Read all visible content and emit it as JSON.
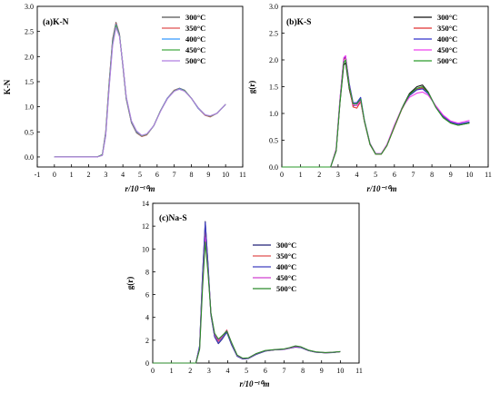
{
  "chart_data": [
    {
      "id": "panel-a",
      "type": "line",
      "title": "(a)K-N",
      "xlabel": "r/10⁻¹⁰m",
      "ylabel": "K-N",
      "xlim": [
        -1,
        11
      ],
      "ylim": [
        -0.2,
        3.0
      ],
      "xticks": [
        -1,
        0,
        1,
        2,
        3,
        4,
        5,
        6,
        7,
        8,
        9,
        10,
        11
      ],
      "yticks": [
        0.0,
        0.5,
        1.0,
        1.5,
        2.0,
        2.5,
        3.0
      ],
      "ytick_labels": [
        "0.0",
        "0.5",
        "1.0",
        "1.5",
        "2.0",
        "2.5",
        "3.0"
      ],
      "legend_position": "top-right",
      "x": [
        0,
        2.5,
        2.8,
        3.0,
        3.2,
        3.4,
        3.6,
        3.8,
        4.0,
        4.2,
        4.5,
        4.8,
        5.1,
        5.4,
        5.8,
        6.2,
        6.6,
        7.0,
        7.3,
        7.6,
        8.0,
        8.4,
        8.8,
        9.1,
        9.5,
        10.0
      ],
      "series": [
        {
          "name": "300°C",
          "color": "#555555",
          "values": [
            0,
            0,
            0.05,
            0.5,
            1.5,
            2.35,
            2.68,
            2.45,
            1.8,
            1.15,
            0.68,
            0.48,
            0.41,
            0.44,
            0.62,
            0.92,
            1.17,
            1.33,
            1.37,
            1.33,
            1.17,
            0.97,
            0.83,
            0.8,
            0.87,
            1.05
          ]
        },
        {
          "name": "350°C",
          "color": "#e05050",
          "values": [
            0,
            0,
            0.04,
            0.48,
            1.48,
            2.33,
            2.66,
            2.44,
            1.81,
            1.16,
            0.69,
            0.49,
            0.41,
            0.44,
            0.62,
            0.92,
            1.17,
            1.33,
            1.36,
            1.32,
            1.17,
            0.97,
            0.83,
            0.8,
            0.87,
            1.05
          ]
        },
        {
          "name": "400°C",
          "color": "#3399ff",
          "values": [
            0,
            0,
            0.04,
            0.46,
            1.45,
            2.3,
            2.64,
            2.43,
            1.82,
            1.17,
            0.7,
            0.5,
            0.42,
            0.45,
            0.62,
            0.92,
            1.17,
            1.32,
            1.36,
            1.32,
            1.17,
            0.97,
            0.84,
            0.81,
            0.87,
            1.05
          ]
        },
        {
          "name": "450°C",
          "color": "#44aa44",
          "values": [
            0,
            0,
            0.04,
            0.44,
            1.42,
            2.27,
            2.62,
            2.42,
            1.83,
            1.18,
            0.71,
            0.51,
            0.42,
            0.45,
            0.62,
            0.92,
            1.16,
            1.32,
            1.35,
            1.32,
            1.17,
            0.98,
            0.84,
            0.81,
            0.87,
            1.05
          ]
        },
        {
          "name": "500°C",
          "color": "#b07ee0",
          "values": [
            0,
            0,
            0.03,
            0.42,
            1.38,
            2.22,
            2.58,
            2.4,
            1.84,
            1.2,
            0.72,
            0.52,
            0.43,
            0.46,
            0.62,
            0.91,
            1.16,
            1.31,
            1.35,
            1.31,
            1.17,
            0.98,
            0.84,
            0.82,
            0.87,
            1.05
          ]
        }
      ]
    },
    {
      "id": "panel-b",
      "type": "line",
      "title": "(b)K-S",
      "xlabel": "r/10⁻¹⁰m",
      "ylabel": "g(r)",
      "xlim": [
        0,
        11
      ],
      "ylim": [
        0,
        3.0
      ],
      "xticks": [
        0,
        1,
        2,
        3,
        4,
        5,
        6,
        7,
        8,
        9,
        10,
        11
      ],
      "yticks": [
        0.0,
        0.5,
        1.0,
        1.5,
        2.0,
        2.5,
        3.0
      ],
      "ytick_labels": [
        "0.0",
        "0.5",
        "1.0",
        "1.5",
        "2.0",
        "2.5",
        "3.0"
      ],
      "legend_position": "top-right",
      "x": [
        0,
        2.6,
        2.9,
        3.1,
        3.3,
        3.4,
        3.6,
        3.8,
        4.0,
        4.2,
        4.4,
        4.7,
        5.0,
        5.3,
        5.6,
        6.0,
        6.4,
        6.8,
        7.2,
        7.5,
        7.8,
        8.2,
        8.6,
        9.0,
        9.4,
        10.0
      ],
      "series": [
        {
          "name": "300°C",
          "color": "#111111",
          "values": [
            0,
            0,
            0.3,
            1.2,
            1.9,
            1.95,
            1.45,
            1.15,
            1.15,
            1.25,
            0.85,
            0.42,
            0.24,
            0.24,
            0.4,
            0.75,
            1.1,
            1.37,
            1.5,
            1.53,
            1.4,
            1.12,
            0.92,
            0.82,
            0.78,
            0.82
          ]
        },
        {
          "name": "350°C",
          "color": "#e03030",
          "values": [
            0,
            0,
            0.32,
            1.25,
            2.0,
            2.05,
            1.5,
            1.12,
            1.1,
            1.22,
            0.86,
            0.43,
            0.24,
            0.24,
            0.4,
            0.74,
            1.08,
            1.33,
            1.45,
            1.48,
            1.38,
            1.13,
            0.94,
            0.83,
            0.79,
            0.83
          ]
        },
        {
          "name": "400°C",
          "color": "#3030cc",
          "values": [
            0,
            0,
            0.33,
            1.27,
            2.02,
            2.07,
            1.55,
            1.2,
            1.2,
            1.3,
            0.88,
            0.44,
            0.25,
            0.25,
            0.41,
            0.76,
            1.09,
            1.33,
            1.44,
            1.46,
            1.37,
            1.14,
            0.95,
            0.84,
            0.8,
            0.84
          ]
        },
        {
          "name": "450°C",
          "color": "#ee40ee",
          "values": [
            0,
            0,
            0.34,
            1.28,
            2.04,
            2.08,
            1.52,
            1.16,
            1.15,
            1.24,
            0.87,
            0.44,
            0.25,
            0.25,
            0.42,
            0.78,
            1.1,
            1.3,
            1.38,
            1.4,
            1.34,
            1.15,
            0.97,
            0.86,
            0.82,
            0.87
          ]
        },
        {
          "name": "500°C",
          "color": "#2a9a2a",
          "values": [
            0,
            0,
            0.31,
            1.22,
            1.95,
            2.0,
            1.5,
            1.18,
            1.18,
            1.27,
            0.87,
            0.43,
            0.24,
            0.24,
            0.4,
            0.75,
            1.09,
            1.35,
            1.47,
            1.5,
            1.39,
            1.12,
            0.92,
            0.82,
            0.78,
            0.82
          ]
        }
      ]
    },
    {
      "id": "panel-c",
      "type": "line",
      "title": "(c)Na-S",
      "xlabel": "r/10⁻¹⁰m",
      "ylabel": "g(r)",
      "xlim": [
        0,
        11
      ],
      "ylim": [
        0,
        14
      ],
      "xticks": [
        0,
        1,
        2,
        3,
        4,
        5,
        6,
        7,
        8,
        9,
        10,
        11
      ],
      "yticks": [
        0,
        2,
        4,
        6,
        8,
        10,
        12,
        14
      ],
      "ytick_labels": [
        "0",
        "2",
        "4",
        "6",
        "8",
        "10",
        "12",
        "14"
      ],
      "legend_position": "top-right",
      "x": [
        0,
        2.3,
        2.5,
        2.65,
        2.8,
        2.95,
        3.1,
        3.3,
        3.5,
        3.7,
        3.95,
        4.2,
        4.5,
        4.8,
        5.1,
        5.5,
        6.0,
        6.5,
        7.0,
        7.3,
        7.6,
        7.9,
        8.3,
        8.7,
        9.2,
        9.6,
        10.0
      ],
      "series": [
        {
          "name": "300°C",
          "color": "#222277",
          "values": [
            0,
            0,
            1.5,
            7.5,
            12.4,
            8.5,
            4.2,
            2.3,
            1.7,
            2.1,
            2.7,
            1.6,
            0.6,
            0.35,
            0.4,
            0.75,
            1.05,
            1.15,
            1.2,
            1.3,
            1.4,
            1.35,
            1.1,
            0.95,
            0.9,
            0.92,
            1.0
          ]
        },
        {
          "name": "350°C",
          "color": "#e05050",
          "values": [
            0,
            0,
            1.4,
            7.2,
            11.8,
            8.3,
            4.3,
            2.4,
            1.9,
            2.3,
            2.9,
            1.7,
            0.65,
            0.38,
            0.42,
            0.78,
            1.07,
            1.16,
            1.22,
            1.33,
            1.45,
            1.38,
            1.1,
            0.96,
            0.9,
            0.93,
            1.0
          ]
        },
        {
          "name": "400°C",
          "color": "#4040c0",
          "values": [
            0,
            0,
            1.5,
            7.6,
            12.3,
            8.6,
            4.3,
            2.3,
            1.75,
            2.15,
            2.75,
            1.65,
            0.62,
            0.36,
            0.41,
            0.76,
            1.06,
            1.15,
            1.2,
            1.31,
            1.42,
            1.36,
            1.1,
            0.95,
            0.9,
            0.92,
            1.0
          ]
        },
        {
          "name": "450°C",
          "color": "#d040d0",
          "values": [
            0,
            0,
            1.3,
            6.8,
            11.0,
            8.0,
            4.4,
            2.5,
            2.0,
            2.35,
            2.85,
            1.75,
            0.68,
            0.4,
            0.44,
            0.8,
            1.08,
            1.17,
            1.22,
            1.33,
            1.45,
            1.4,
            1.12,
            0.97,
            0.91,
            0.94,
            1.0
          ]
        },
        {
          "name": "500°C",
          "color": "#2a8a2a",
          "values": [
            0,
            0,
            1.2,
            6.4,
            10.6,
            7.8,
            4.4,
            2.6,
            2.1,
            2.4,
            2.8,
            1.8,
            0.7,
            0.42,
            0.45,
            0.82,
            1.1,
            1.18,
            1.24,
            1.35,
            1.5,
            1.42,
            1.13,
            0.98,
            0.92,
            0.95,
            1.0
          ]
        }
      ]
    }
  ]
}
